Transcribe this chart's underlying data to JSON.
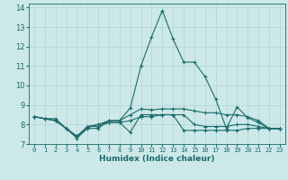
{
  "title": "",
  "xlabel": "Humidex (Indice chaleur)",
  "ylabel": "",
  "xlim": [
    -0.5,
    23.5
  ],
  "ylim": [
    7,
    14.2
  ],
  "yticks": [
    7,
    8,
    9,
    10,
    11,
    12,
    13,
    14
  ],
  "xticks": [
    0,
    1,
    2,
    3,
    4,
    5,
    6,
    7,
    8,
    9,
    10,
    11,
    12,
    13,
    14,
    15,
    16,
    17,
    18,
    19,
    20,
    21,
    22,
    23
  ],
  "background_color": "#cde8e8",
  "grid_color": "#b0d4d4",
  "line_color": "#1a6b6b",
  "series": [
    {
      "x": [
        0,
        1,
        2,
        3,
        4,
        5,
        6,
        7,
        8,
        9,
        10,
        11,
        12,
        13,
        14,
        15,
        16,
        17,
        18,
        19,
        20,
        21,
        22,
        23
      ],
      "y": [
        8.4,
        8.3,
        8.3,
        7.8,
        7.3,
        7.8,
        7.8,
        8.2,
        8.2,
        8.85,
        11.0,
        12.5,
        13.85,
        12.4,
        11.2,
        11.2,
        10.45,
        9.3,
        7.8,
        8.9,
        8.35,
        8.1,
        7.78,
        7.78
      ]
    },
    {
      "x": [
        0,
        1,
        2,
        3,
        4,
        5,
        6,
        7,
        8,
        9,
        10,
        11,
        12,
        13,
        14,
        15,
        16,
        17,
        18,
        19,
        20,
        21,
        22,
        23
      ],
      "y": [
        8.4,
        8.3,
        8.2,
        7.8,
        7.4,
        7.9,
        7.9,
        8.1,
        8.1,
        7.6,
        8.5,
        8.5,
        8.5,
        8.5,
        8.5,
        8.0,
        7.9,
        7.9,
        7.9,
        8.0,
        8.0,
        7.9,
        7.8,
        7.8
      ]
    },
    {
      "x": [
        0,
        1,
        2,
        3,
        4,
        5,
        6,
        7,
        8,
        9,
        10,
        11,
        12,
        13,
        14,
        15,
        16,
        17,
        18,
        19,
        20,
        21,
        22,
        23
      ],
      "y": [
        8.4,
        8.3,
        8.2,
        7.8,
        7.4,
        7.85,
        8.0,
        8.2,
        8.2,
        8.5,
        8.8,
        8.75,
        8.8,
        8.8,
        8.8,
        8.7,
        8.6,
        8.6,
        8.5,
        8.5,
        8.4,
        8.2,
        7.8,
        7.8
      ]
    },
    {
      "x": [
        0,
        1,
        2,
        3,
        4,
        5,
        6,
        7,
        8,
        9,
        10,
        11,
        12,
        13,
        14,
        15,
        16,
        17,
        18,
        19,
        20,
        21,
        22,
        23
      ],
      "y": [
        8.4,
        8.3,
        8.2,
        7.8,
        7.35,
        7.9,
        8.0,
        8.1,
        8.1,
        8.2,
        8.4,
        8.4,
        8.5,
        8.5,
        7.7,
        7.7,
        7.7,
        7.7,
        7.7,
        7.7,
        7.8,
        7.8,
        7.8,
        7.8
      ]
    }
  ]
}
